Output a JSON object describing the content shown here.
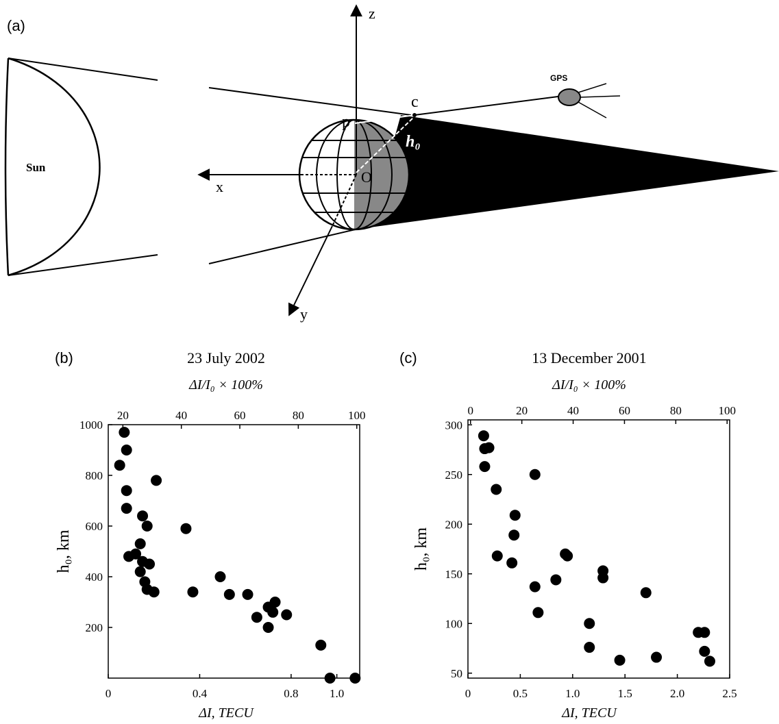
{
  "diagram": {
    "panel_label": "(a)",
    "z_label": "z",
    "x_label": "x",
    "y_label": "y",
    "sun_label": "Sun",
    "gps_label": "GPS",
    "c_label": "c",
    "p_label": "p",
    "o_label": "O",
    "h_label": "h₀"
  },
  "chart_data": [
    {
      "type": "scatter",
      "panel_label": "(b)",
      "title": "23 July 2002",
      "x2_label": "ΔI/I₀ × 100%",
      "x_label": "ΔI, TECU",
      "y_label": "h₀, km",
      "color": "#000000",
      "xlim": [
        0,
        1.1
      ],
      "xticks": [
        0,
        0.4,
        0.8,
        {
          "value": 1,
          "label": "1.0"
        }
      ],
      "x2lim": [
        15,
        101
      ],
      "x2ticks": [
        20,
        40,
        60,
        80,
        100
      ],
      "ylim": [
        0,
        1000
      ],
      "yticks": [
        200,
        400,
        600,
        800,
        1000
      ],
      "x": [
        0.07,
        0.08,
        0.05,
        0.08,
        0.21,
        0.08,
        0.15,
        0.17,
        0.34,
        0.14,
        0.09,
        0.12,
        0.15,
        0.14,
        0.18,
        0.16,
        0.17,
        0.2,
        0.37,
        0.49,
        0.53,
        0.61,
        0.65,
        0.7,
        0.73,
        0.72,
        0.7,
        0.78,
        0.93,
        0.97,
        1.08
      ],
      "values": [
        970,
        900,
        840,
        740,
        780,
        670,
        640,
        600,
        590,
        530,
        480,
        490,
        460,
        420,
        450,
        380,
        350,
        340,
        340,
        400,
        330,
        330,
        240,
        280,
        300,
        260,
        200,
        250,
        130,
        0,
        0
      ]
    },
    {
      "type": "scatter",
      "panel_label": "(c)",
      "title": "13 December 2001",
      "x2_label": "ΔI/I₀ × 100%",
      "x_label": "ΔI, TECU",
      "y_label": "h₀, km",
      "color": "#000000",
      "xlim": [
        0,
        2.5
      ],
      "xticks": [
        0,
        0.5,
        {
          "value": 1,
          "label": "1.0"
        },
        1.5,
        {
          "value": 2,
          "label": "2.0"
        },
        2.5
      ],
      "x2lim": [
        -1,
        101
      ],
      "x2ticks": [
        0,
        20,
        40,
        60,
        80,
        100
      ],
      "ylim": [
        45,
        305
      ],
      "yticks": [
        50,
        100,
        150,
        200,
        250,
        300
      ],
      "x": [
        1.16,
        1.16,
        1.45,
        1.8,
        2.2,
        2.26,
        2.26,
        2.31,
        1.7,
        1.29,
        1.29,
        0.93,
        0.95,
        0.84,
        0.64,
        0.67,
        0.42,
        0.45,
        0.44,
        0.28,
        0.27,
        0.64,
        0.15,
        0.16,
        0.2,
        0.16
      ],
      "values": [
        100,
        76,
        63,
        66,
        91,
        91,
        72,
        62,
        131,
        153,
        146,
        170,
        168,
        144,
        137,
        111,
        161,
        209,
        189,
        168,
        235,
        250,
        289,
        276,
        277,
        258
      ]
    }
  ]
}
